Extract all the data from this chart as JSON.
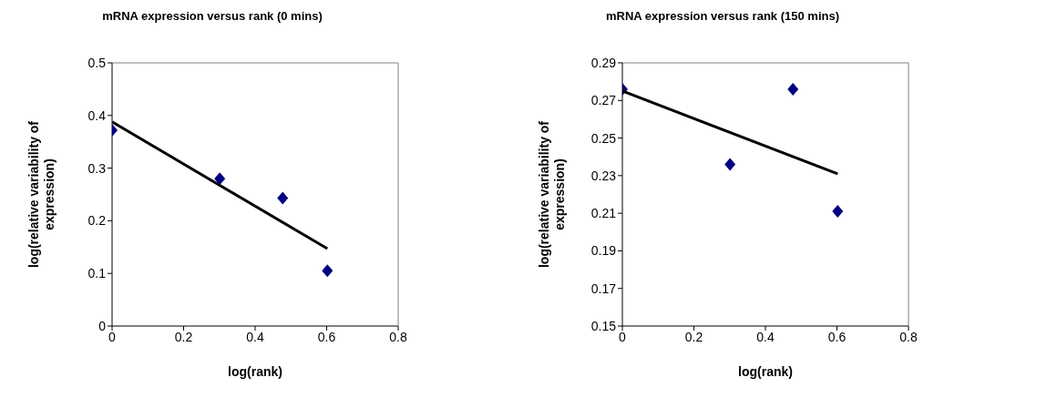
{
  "chart_data": [
    {
      "type": "scatter",
      "title": "mRNA expression versus rank (0 mins)",
      "xlabel": "log(rank)",
      "ylabel": "log(relative variability of expression)",
      "xlim": [
        0,
        0.8
      ],
      "xticks": [
        0,
        0.2,
        0.4,
        0.6,
        0.8
      ],
      "ylim": [
        0,
        0.5
      ],
      "yticks": [
        0,
        0.1,
        0.2,
        0.3,
        0.4,
        0.5
      ],
      "grid": false,
      "legend": false,
      "series": [
        {
          "marker": "diamond",
          "color": "#000080",
          "x": [
            0,
            0.301,
            0.477,
            0.602
          ],
          "values": [
            0.372,
            0.28,
            0.243,
            0.105
          ]
        },
        {
          "type": "line",
          "marker": "none",
          "color": "#000000",
          "x": [
            0,
            0.602
          ],
          "values": [
            0.388,
            0.147
          ]
        }
      ]
    },
    {
      "type": "scatter",
      "title": "mRNA expression versus rank (150 mins)",
      "xlabel": "log(rank)",
      "ylabel": "log(relative variability of expression)",
      "xlim": [
        0,
        0.8
      ],
      "xticks": [
        0,
        0.2,
        0.4,
        0.6,
        0.8
      ],
      "ylim": [
        0.15,
        0.29
      ],
      "yticks": [
        0.15,
        0.17,
        0.19,
        0.21,
        0.23,
        0.25,
        0.27,
        0.29
      ],
      "grid": false,
      "legend": false,
      "series": [
        {
          "marker": "diamond",
          "color": "#000080",
          "x": [
            0,
            0.301,
            0.477,
            0.602
          ],
          "values": [
            0.276,
            0.236,
            0.276,
            0.211
          ]
        },
        {
          "type": "line",
          "marker": "none",
          "color": "#000000",
          "x": [
            0,
            0.602
          ],
          "values": [
            0.275,
            0.231
          ]
        }
      ]
    }
  ]
}
